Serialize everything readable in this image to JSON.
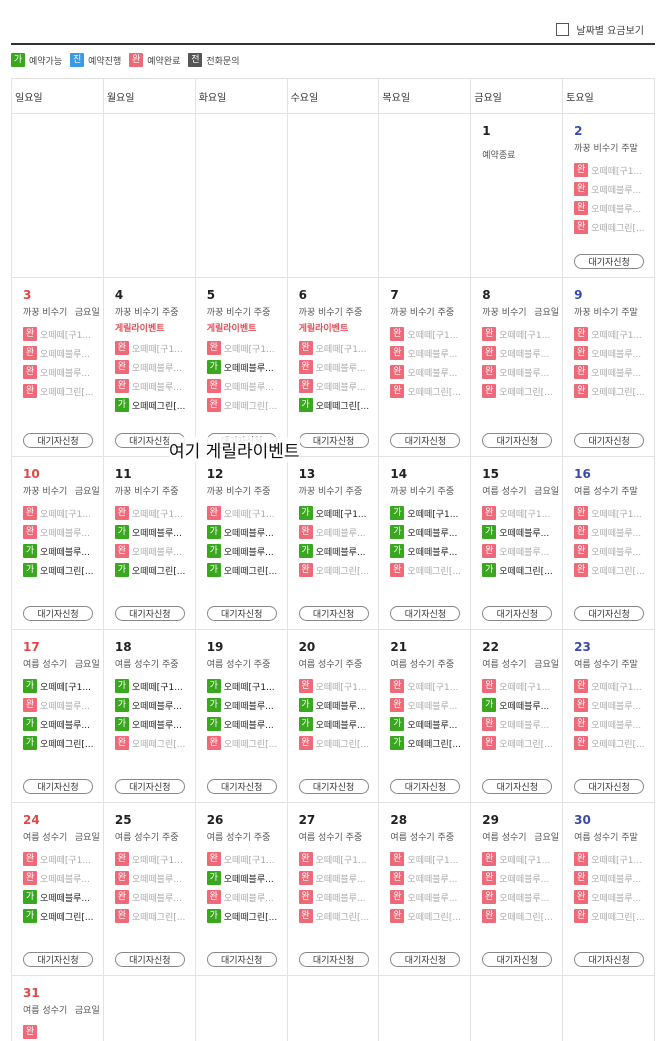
{
  "header": {
    "price_by_date_label": "날짜별 요금보기"
  },
  "legend": [
    {
      "badge": "가",
      "status": "ga",
      "label": "예약가능"
    },
    {
      "badge": "진",
      "status": "jin",
      "label": "예약진행"
    },
    {
      "badge": "완",
      "status": "wan",
      "label": "예약완료"
    },
    {
      "badge": "전",
      "status": "jeon",
      "label": "전화문의"
    }
  ],
  "weekdays": [
    "일요일",
    "월요일",
    "화요일",
    "수요일",
    "목요일",
    "금요일",
    "토요일"
  ],
  "wait_label": "대기자신청",
  "overlay_note": "여기 게릴라이벤트",
  "weeks": [
    {
      "height": 164,
      "days": [
        null,
        null,
        null,
        null,
        null,
        {
          "num": "1",
          "status_text": "예약종료"
        },
        {
          "num": "2",
          "season": "까꿍 비수기 주말",
          "rooms": [
            [
              "wan",
              "오떼떼[구1..."
            ],
            [
              "wan",
              "오떼떼블루..."
            ],
            [
              "wan",
              "오떼떼블루..."
            ],
            [
              "wan",
              "오떼떼그린[..."
            ]
          ],
          "wait": true
        }
      ]
    },
    {
      "height": 179,
      "days": [
        {
          "num": "3",
          "season": "까꿍 비수기",
          "stype": "금요일",
          "rooms": [
            [
              "wan",
              "오떼떼[구1..."
            ],
            [
              "wan",
              "오떼떼블루..."
            ],
            [
              "wan",
              "오떼떼블루..."
            ],
            [
              "wan",
              "오떼떼그린[..."
            ]
          ],
          "wait": true
        },
        {
          "num": "4",
          "season": "까꿍 비수기 주중",
          "event": "게릴라이벤트",
          "rooms": [
            [
              "wan",
              "오떼떼[구1..."
            ],
            [
              "wan",
              "오떼떼블루..."
            ],
            [
              "wan",
              "오떼떼블루..."
            ],
            [
              "ga",
              "오떼떼그린[..."
            ]
          ],
          "wait": true
        },
        {
          "num": "5",
          "season": "까꿍 비수기 주중",
          "event": "게릴라이벤트",
          "rooms": [
            [
              "wan",
              "오떼떼[구1..."
            ],
            [
              "ga",
              "오떼떼블루..."
            ],
            [
              "wan",
              "오떼떼블루..."
            ],
            [
              "wan",
              "오떼떼그린[..."
            ]
          ],
          "wait": true
        },
        {
          "num": "6",
          "season": "까꿍 비수기 주중",
          "event": "게릴라이벤트",
          "rooms": [
            [
              "wan",
              "오떼떼[구1..."
            ],
            [
              "wan",
              "오떼떼블루..."
            ],
            [
              "wan",
              "오떼떼블루..."
            ],
            [
              "ga",
              "오떼떼그린[..."
            ]
          ],
          "wait": true
        },
        {
          "num": "7",
          "season": "까꿍 비수기 주중",
          "rooms": [
            [
              "wan",
              "오떼떼[구1..."
            ],
            [
              "wan",
              "오떼떼블루..."
            ],
            [
              "wan",
              "오떼떼블루..."
            ],
            [
              "wan",
              "오떼떼그린[..."
            ]
          ],
          "wait": true
        },
        {
          "num": "8",
          "season": "까꿍 비수기",
          "stype": "금요일",
          "rooms": [
            [
              "wan",
              "오떼떼[구1..."
            ],
            [
              "wan",
              "오떼떼블루..."
            ],
            [
              "wan",
              "오떼떼블루..."
            ],
            [
              "wan",
              "오떼떼그린[..."
            ]
          ],
          "wait": true
        },
        {
          "num": "9",
          "season": "까꿍 비수기 주말",
          "rooms": [
            [
              "wan",
              "오떼떼[구1..."
            ],
            [
              "wan",
              "오떼떼블루..."
            ],
            [
              "wan",
              "오떼떼블루..."
            ],
            [
              "wan",
              "오떼떼그린[..."
            ]
          ],
          "wait": true
        }
      ]
    },
    {
      "height": 173,
      "days": [
        {
          "num": "10",
          "season": "까꿍 비수기",
          "stype": "금요일",
          "rooms": [
            [
              "wan",
              "오떼떼[구1..."
            ],
            [
              "wan",
              "오떼떼블루..."
            ],
            [
              "ga",
              "오떼떼블루..."
            ],
            [
              "ga",
              "오떼떼그린[..."
            ]
          ],
          "wait": true
        },
        {
          "num": "11",
          "season": "까꿍 비수기 주중",
          "rooms": [
            [
              "wan",
              "오떼떼[구1..."
            ],
            [
              "ga",
              "오떼떼블루..."
            ],
            [
              "wan",
              "오떼떼블루..."
            ],
            [
              "ga",
              "오떼떼그린[..."
            ]
          ],
          "wait": true
        },
        {
          "num": "12",
          "season": "까꿍 비수기 주중",
          "rooms": [
            [
              "wan",
              "오떼떼[구1..."
            ],
            [
              "ga",
              "오떼떼블루..."
            ],
            [
              "ga",
              "오떼떼블루..."
            ],
            [
              "ga",
              "오떼떼그린[..."
            ]
          ],
          "wait": true
        },
        {
          "num": "13",
          "season": "까꿍 비수기 주중",
          "rooms": [
            [
              "ga",
              "오떼떼[구1..."
            ],
            [
              "wan",
              "오떼떼블루..."
            ],
            [
              "ga",
              "오떼떼블루..."
            ],
            [
              "wan",
              "오떼떼그린[..."
            ]
          ],
          "wait": true
        },
        {
          "num": "14",
          "season": "까꿍 비수기 주중",
          "rooms": [
            [
              "ga",
              "오떼떼[구1..."
            ],
            [
              "ga",
              "오떼떼블루..."
            ],
            [
              "ga",
              "오떼떼블루..."
            ],
            [
              "wan",
              "오떼떼그린[..."
            ]
          ],
          "wait": true
        },
        {
          "num": "15",
          "season": "여름 성수기",
          "stype": "금요일",
          "rooms": [
            [
              "wan",
              "오떼떼[구1..."
            ],
            [
              "ga",
              "오떼떼블루..."
            ],
            [
              "wan",
              "오떼떼블루..."
            ],
            [
              "ga",
              "오떼떼그린[..."
            ]
          ],
          "wait": true
        },
        {
          "num": "16",
          "season": "여름 성수기 주말",
          "rooms": [
            [
              "wan",
              "오떼떼[구1..."
            ],
            [
              "wan",
              "오떼떼블루..."
            ],
            [
              "wan",
              "오떼떼블루..."
            ],
            [
              "wan",
              "오떼떼그린[..."
            ]
          ],
          "wait": true
        }
      ]
    },
    {
      "height": 173,
      "days": [
        {
          "num": "17",
          "season": "여름 성수기",
          "stype": "금요일",
          "rooms": [
            [
              "ga",
              "오떼떼[구1..."
            ],
            [
              "wan",
              "오떼떼블루..."
            ],
            [
              "ga",
              "오떼떼블루..."
            ],
            [
              "ga",
              "오떼떼그린[..."
            ]
          ],
          "wait": true
        },
        {
          "num": "18",
          "season": "여름 성수기 주중",
          "rooms": [
            [
              "ga",
              "오떼떼[구1..."
            ],
            [
              "ga",
              "오떼떼블루..."
            ],
            [
              "ga",
              "오떼떼블루..."
            ],
            [
              "wan",
              "오떼떼그린[..."
            ]
          ],
          "wait": true
        },
        {
          "num": "19",
          "season": "여름 성수기 주중",
          "rooms": [
            [
              "ga",
              "오떼떼[구1..."
            ],
            [
              "ga",
              "오떼떼블루..."
            ],
            [
              "ga",
              "오떼떼블루..."
            ],
            [
              "wan",
              "오떼떼그린[..."
            ]
          ],
          "wait": true
        },
        {
          "num": "20",
          "season": "여름 성수기 주중",
          "rooms": [
            [
              "wan",
              "오떼떼[구1..."
            ],
            [
              "ga",
              "오떼떼블루..."
            ],
            [
              "ga",
              "오떼떼블루..."
            ],
            [
              "wan",
              "오떼떼그린[..."
            ]
          ],
          "wait": true
        },
        {
          "num": "21",
          "season": "여름 성수기 주중",
          "rooms": [
            [
              "wan",
              "오떼떼[구1..."
            ],
            [
              "wan",
              "오떼떼블루..."
            ],
            [
              "ga",
              "오떼떼블루..."
            ],
            [
              "ga",
              "오떼떼그린[..."
            ]
          ],
          "wait": true
        },
        {
          "num": "22",
          "season": "여름 성수기",
          "stype": "금요일",
          "rooms": [
            [
              "wan",
              "오떼떼[구1..."
            ],
            [
              "ga",
              "오떼떼블루..."
            ],
            [
              "wan",
              "오떼떼블루..."
            ],
            [
              "wan",
              "오떼떼그린[..."
            ]
          ],
          "wait": true
        },
        {
          "num": "23",
          "season": "여름 성수기 주말",
          "rooms": [
            [
              "wan",
              "오떼떼[구1..."
            ],
            [
              "wan",
              "오떼떼블루..."
            ],
            [
              "wan",
              "오떼떼블루..."
            ],
            [
              "wan",
              "오떼떼그린[..."
            ]
          ],
          "wait": true
        }
      ]
    },
    {
      "height": 173,
      "days": [
        {
          "num": "24",
          "season": "여름 성수기",
          "stype": "금요일",
          "rooms": [
            [
              "wan",
              "오떼떼[구1..."
            ],
            [
              "wan",
              "오떼떼블루..."
            ],
            [
              "ga",
              "오떼떼블루..."
            ],
            [
              "ga",
              "오떼떼그린[..."
            ]
          ],
          "wait": true
        },
        {
          "num": "25",
          "season": "여름 성수기 주중",
          "rooms": [
            [
              "wan",
              "오떼떼[구1..."
            ],
            [
              "wan",
              "오떼떼블루..."
            ],
            [
              "wan",
              "오떼떼블루..."
            ],
            [
              "wan",
              "오떼떼그린[..."
            ]
          ],
          "wait": true
        },
        {
          "num": "26",
          "season": "여름 성수기 주중",
          "rooms": [
            [
              "wan",
              "오떼떼[구1..."
            ],
            [
              "ga",
              "오떼떼블루..."
            ],
            [
              "wan",
              "오떼떼블루..."
            ],
            [
              "ga",
              "오떼떼그린[..."
            ]
          ],
          "wait": true
        },
        {
          "num": "27",
          "season": "여름 성수기 주중",
          "rooms": [
            [
              "wan",
              "오떼떼[구1..."
            ],
            [
              "wan",
              "오떼떼블루..."
            ],
            [
              "wan",
              "오떼떼블루..."
            ],
            [
              "wan",
              "오떼떼그린[..."
            ]
          ],
          "wait": true
        },
        {
          "num": "28",
          "season": "여름 성수기 주중",
          "rooms": [
            [
              "wan",
              "오떼떼[구1..."
            ],
            [
              "wan",
              "오떼떼블루..."
            ],
            [
              "wan",
              "오떼떼블루..."
            ],
            [
              "wan",
              "오떼떼그린[..."
            ]
          ],
          "wait": true
        },
        {
          "num": "29",
          "season": "여름 성수기",
          "stype": "금요일",
          "rooms": [
            [
              "wan",
              "오떼떼[구1..."
            ],
            [
              "wan",
              "오떼떼블루..."
            ],
            [
              "wan",
              "오떼떼블루..."
            ],
            [
              "wan",
              "오떼떼그린[..."
            ]
          ],
          "wait": true
        },
        {
          "num": "30",
          "season": "여름 성수기 주말",
          "rooms": [
            [
              "wan",
              "오떼떼[구1..."
            ],
            [
              "wan",
              "오떼떼블루..."
            ],
            [
              "wan",
              "오떼떼블루..."
            ],
            [
              "wan",
              "오떼떼그린[..."
            ]
          ],
          "wait": true
        }
      ]
    },
    {
      "height": 80,
      "days": [
        {
          "num": "31",
          "season": "여름 성수기",
          "stype": "금요일",
          "rooms": [
            [
              "wan",
              ""
            ]
          ]
        },
        null,
        null,
        null,
        null,
        null,
        null
      ]
    }
  ]
}
